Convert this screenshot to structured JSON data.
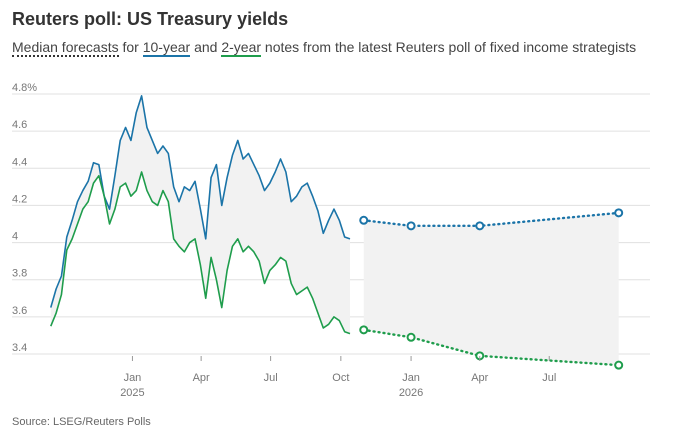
{
  "header": {
    "title": "Reuters poll: US Treasury yields",
    "subtitle_parts": [
      "Median forecasts",
      " for ",
      "10-year",
      " and ",
      "2-year",
      " notes from the latest Reuters poll of fixed income strategists"
    ]
  },
  "footer": {
    "source": "Source: LSEG/Reuters Polls"
  },
  "colors": {
    "ten_year": "#1b74a8",
    "two_year": "#1f9d4c",
    "band": "#f2f2f2",
    "grid": "#e0e0e0"
  },
  "chart_data": {
    "type": "line",
    "title": "Reuters poll: US Treasury yields",
    "xlabel": "",
    "ylabel": "",
    "ylim": [
      3.3,
      4.8
    ],
    "yticks": [
      "4.8%",
      "4.6",
      "4.4",
      "4.2",
      "4",
      "3.8",
      "3.6",
      "3.4"
    ],
    "xticks": [
      {
        "date": "2025-01-01",
        "label": "Jan",
        "year": "2025"
      },
      {
        "date": "2025-04-01",
        "label": "Apr",
        "year": ""
      },
      {
        "date": "2025-07-01",
        "label": "Jul",
        "year": ""
      },
      {
        "date": "2025-10-01",
        "label": "Oct",
        "year": ""
      },
      {
        "date": "2026-01-01",
        "label": "Jan",
        "year": "2026"
      },
      {
        "date": "2026-04-01",
        "label": "Apr",
        "year": ""
      },
      {
        "date": "2026-07-01",
        "label": "Jul",
        "year": ""
      }
    ],
    "xlim": [
      "2024-09-15",
      "2026-11-10"
    ],
    "grid": true,
    "series": [
      {
        "name": "10-year",
        "kind": "history",
        "dates": [
          "2024-09-16",
          "2024-09-23",
          "2024-09-30",
          "2024-10-07",
          "2024-10-14",
          "2024-10-21",
          "2024-10-28",
          "2024-11-04",
          "2024-11-11",
          "2024-11-18",
          "2024-11-25",
          "2024-12-02",
          "2024-12-09",
          "2024-12-16",
          "2024-12-23",
          "2024-12-30",
          "2025-01-06",
          "2025-01-13",
          "2025-01-20",
          "2025-01-27",
          "2025-02-03",
          "2025-02-10",
          "2025-02-17",
          "2025-02-24",
          "2025-03-03",
          "2025-03-10",
          "2025-03-17",
          "2025-03-24",
          "2025-03-31",
          "2025-04-07",
          "2025-04-14",
          "2025-04-21",
          "2025-04-28",
          "2025-05-05",
          "2025-05-12",
          "2025-05-19",
          "2025-05-26",
          "2025-06-02",
          "2025-06-09",
          "2025-06-16",
          "2025-06-23",
          "2025-06-30",
          "2025-07-07",
          "2025-07-14",
          "2025-07-21",
          "2025-07-28",
          "2025-08-04",
          "2025-08-11",
          "2025-08-18",
          "2025-08-25",
          "2025-09-01",
          "2025-09-08",
          "2025-09-15",
          "2025-09-22",
          "2025-09-29",
          "2025-10-06",
          "2025-10-13"
        ],
        "values": [
          3.65,
          3.75,
          3.82,
          4.03,
          4.12,
          4.22,
          4.28,
          4.33,
          4.43,
          4.42,
          4.25,
          4.18,
          4.36,
          4.55,
          4.62,
          4.55,
          4.7,
          4.79,
          4.62,
          4.55,
          4.48,
          4.52,
          4.48,
          4.3,
          4.22,
          4.3,
          4.28,
          4.33,
          4.18,
          4.02,
          4.35,
          4.42,
          4.2,
          4.35,
          4.47,
          4.55,
          4.45,
          4.48,
          4.42,
          4.36,
          4.28,
          4.32,
          4.38,
          4.45,
          4.38,
          4.22,
          4.25,
          4.3,
          4.32,
          4.25,
          4.17,
          4.05,
          4.12,
          4.18,
          4.12,
          4.03,
          4.02
        ]
      },
      {
        "name": "2-year",
        "kind": "history",
        "dates": [
          "2024-09-16",
          "2024-09-23",
          "2024-09-30",
          "2024-10-07",
          "2024-10-14",
          "2024-10-21",
          "2024-10-28",
          "2024-11-04",
          "2024-11-11",
          "2024-11-18",
          "2024-11-25",
          "2024-12-02",
          "2024-12-09",
          "2024-12-16",
          "2024-12-23",
          "2024-12-30",
          "2025-01-06",
          "2025-01-13",
          "2025-01-20",
          "2025-01-27",
          "2025-02-03",
          "2025-02-10",
          "2025-02-17",
          "2025-02-24",
          "2025-03-03",
          "2025-03-10",
          "2025-03-17",
          "2025-03-24",
          "2025-03-31",
          "2025-04-07",
          "2025-04-14",
          "2025-04-21",
          "2025-04-28",
          "2025-05-05",
          "2025-05-12",
          "2025-05-19",
          "2025-05-26",
          "2025-06-02",
          "2025-06-09",
          "2025-06-16",
          "2025-06-23",
          "2025-06-30",
          "2025-07-07",
          "2025-07-14",
          "2025-07-21",
          "2025-07-28",
          "2025-08-04",
          "2025-08-11",
          "2025-08-18",
          "2025-08-25",
          "2025-09-01",
          "2025-09-08",
          "2025-09-15",
          "2025-09-22",
          "2025-09-29",
          "2025-10-06",
          "2025-10-13"
        ],
        "values": [
          3.55,
          3.62,
          3.72,
          3.96,
          4.02,
          4.1,
          4.18,
          4.22,
          4.32,
          4.36,
          4.25,
          4.1,
          4.18,
          4.3,
          4.32,
          4.25,
          4.28,
          4.38,
          4.28,
          4.22,
          4.2,
          4.28,
          4.22,
          4.02,
          3.98,
          3.95,
          4.0,
          4.02,
          3.88,
          3.7,
          3.92,
          3.8,
          3.65,
          3.85,
          3.98,
          4.02,
          3.95,
          3.98,
          3.95,
          3.9,
          3.78,
          3.85,
          3.88,
          3.92,
          3.9,
          3.78,
          3.72,
          3.74,
          3.76,
          3.7,
          3.62,
          3.54,
          3.56,
          3.6,
          3.58,
          3.52,
          3.51
        ]
      },
      {
        "name": "10-year",
        "kind": "forecast",
        "dates": [
          "2025-10-31",
          "2026-01-01",
          "2026-04-01",
          "2026-09-30"
        ],
        "values": [
          4.12,
          4.09,
          4.09,
          4.16
        ]
      },
      {
        "name": "2-year",
        "kind": "forecast",
        "dates": [
          "2025-10-31",
          "2026-01-01",
          "2026-04-01",
          "2026-09-30"
        ],
        "values": [
          3.53,
          3.49,
          3.39,
          3.34
        ]
      }
    ]
  }
}
